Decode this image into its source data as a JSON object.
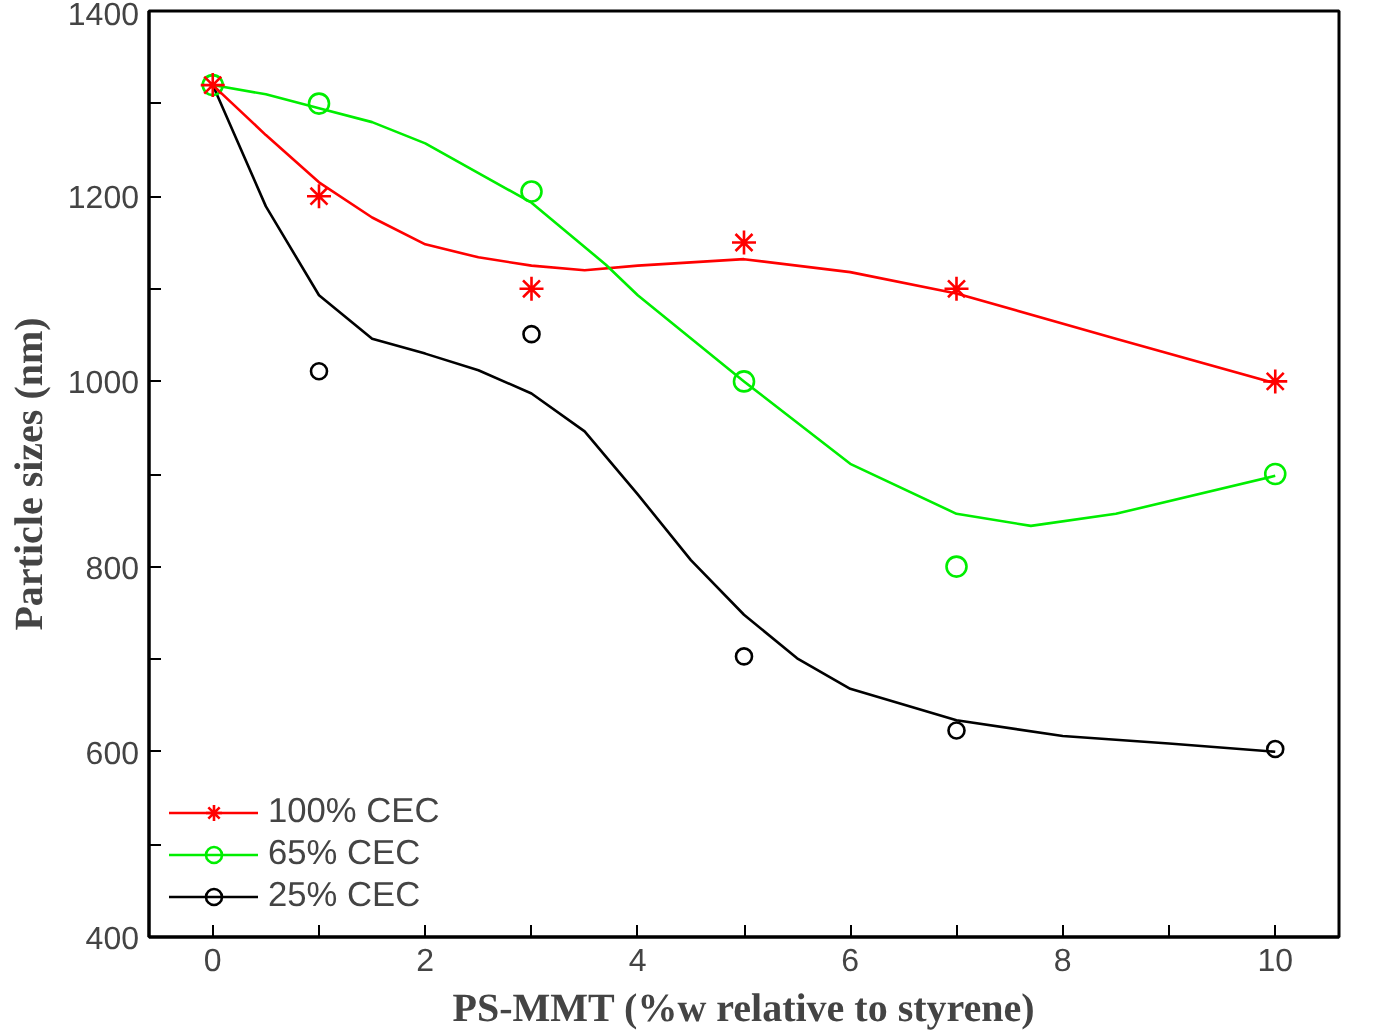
{
  "chart_data": {
    "type": "scatter",
    "xlabel": "PS-MMT (%w relative to styrene)",
    "ylabel": "Particle sizes (nm)",
    "xlim": [
      -0.6,
      10.6
    ],
    "ylim": [
      400,
      1400
    ],
    "xticks": [
      0,
      {
        "value": 1,
        "label": null
      },
      2,
      {
        "value": 3,
        "label": null
      },
      4,
      {
        "value": 5,
        "label": null
      },
      6,
      {
        "value": 7,
        "label": null
      },
      8,
      {
        "value": 9,
        "label": null
      },
      10
    ],
    "yticks": [
      400,
      {
        "value": 500,
        "label": null
      },
      600,
      {
        "value": 700,
        "label": null
      },
      800,
      {
        "value": 900,
        "label": null
      },
      1000,
      {
        "value": 1100,
        "label": null
      },
      1200,
      {
        "value": 1300,
        "label": null
      },
      1400
    ],
    "grid": false,
    "legend": "bottom left",
    "series": [
      {
        "name": "100% CEC",
        "color": "#ff0000",
        "marker": "cross",
        "x": [
          0,
          1,
          3,
          5,
          7,
          10
        ],
        "values": [
          1320,
          1200,
          1100,
          1150,
          1100,
          1000
        ]
      },
      {
        "name": "65% CEC",
        "color": "#00ee00",
        "marker": "circle",
        "x": [
          0,
          1,
          3,
          5,
          7,
          10
        ],
        "values": [
          1320,
          1300,
          1205,
          1000,
          800,
          900
        ]
      },
      {
        "name": "25% CEC",
        "color": "#000000",
        "marker": "circle",
        "x": [
          1,
          3,
          5,
          7,
          10
        ],
        "values": [
          1011,
          1051,
          703,
          623,
          603
        ]
      },
      {
        "type": "line",
        "color": "#ff0000",
        "x": [
          0,
          0.5,
          1,
          1.5,
          2,
          2.5,
          3,
          3.5,
          4,
          5,
          6,
          7,
          8.5,
          10
        ],
        "values": [
          1320,
          1266,
          1215,
          1177,
          1148,
          1134,
          1125,
          1120,
          1125,
          1132,
          1118,
          1095,
          1046,
          998
        ]
      },
      {
        "type": "line",
        "color": "#00ee00",
        "x": [
          0,
          0.5,
          1,
          1.5,
          2,
          3,
          3.7,
          4,
          5,
          6,
          7,
          7.7,
          8.5,
          10
        ],
        "values": [
          1320,
          1310,
          1295,
          1280,
          1257,
          1193,
          1126,
          1093,
          1000,
          911,
          857,
          844,
          857,
          898
        ]
      },
      {
        "type": "line",
        "color": "#000000",
        "x": [
          0,
          0.5,
          1,
          1.5,
          2,
          2.5,
          3,
          3.5,
          4,
          4.5,
          5,
          5.5,
          6,
          7,
          8,
          9,
          10
        ],
        "values": [
          1320,
          1189,
          1093,
          1046,
          1030,
          1012,
          987,
          946,
          878,
          807,
          748,
          701,
          668,
          634,
          617,
          609,
          600
        ]
      }
    ]
  }
}
